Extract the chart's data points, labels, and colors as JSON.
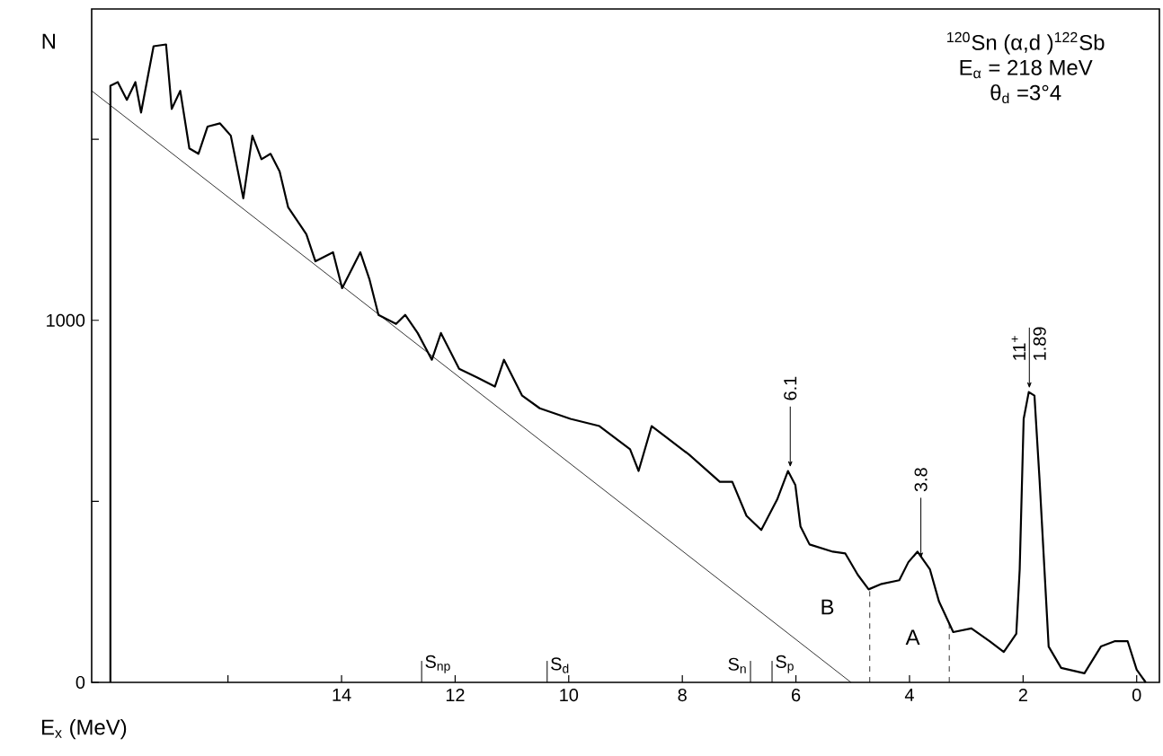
{
  "chart_data": {
    "type": "line",
    "xlabel": "E$_{x}$ (MeV)",
    "ylabel": "N",
    "xlim": [
      18.4,
      -0.4
    ],
    "ylim": [
      0,
      1860
    ],
    "xticks": [
      {
        "value": 16,
        "label": null
      },
      14,
      12,
      10,
      8,
      6,
      4,
      2,
      0
    ],
    "yticks": [
      0,
      {
        "value": 500,
        "label": null
      },
      1000,
      {
        "value": 1500,
        "label": null
      }
    ],
    "grid": false,
    "marker": "none",
    "line_style": "solid",
    "series": [
      {
        "color": "#000000",
        "x": [
          18.07,
          18.07,
          17.94,
          17.78,
          17.63,
          17.53,
          17.31,
          17.09,
          16.99,
          16.84,
          16.68,
          16.52,
          16.36,
          16.14,
          15.95,
          15.73,
          15.57,
          15.41,
          15.25,
          15.09,
          14.94,
          14.62,
          14.46,
          14.15,
          13.99,
          13.67,
          13.51,
          13.35,
          13.04,
          12.88,
          12.66,
          12.41,
          12.25,
          11.93,
          11.61,
          11.3,
          11.14,
          10.82,
          10.51,
          9.97,
          9.46,
          8.92,
          8.77,
          8.54,
          8.29,
          7.88,
          7.34,
          7.12,
          6.87,
          6.61,
          6.33,
          6.14,
          6.01,
          5.92,
          5.76,
          5.35,
          5.13,
          4.91,
          4.72,
          4.49,
          4.18,
          4.02,
          3.86,
          3.64,
          3.48,
          3.23,
          2.91,
          2.59,
          2.34,
          2.12,
          2.06,
          1.99,
          1.9,
          1.8,
          1.71,
          1.55,
          1.33,
          0.92,
          0.63,
          0.38,
          0.16,
          0,
          -0.16
        ],
        "values": [
          0,
          1648,
          1658,
          1609,
          1658,
          1574,
          1757,
          1762,
          1584,
          1634,
          1475,
          1460,
          1535,
          1544,
          1510,
          1337,
          1510,
          1445,
          1460,
          1411,
          1312,
          1238,
          1163,
          1188,
          1089,
          1188,
          1114,
          1015,
          990,
          1015,
          965,
          891,
          965,
          866,
          842,
          817,
          891,
          792,
          757,
          728,
          708,
          644,
          584,
          708,
          678,
          629,
          554,
          554,
          460,
          421,
          505,
          584,
          545,
          431,
          381,
          361,
          356,
          297,
          257,
          272,
          282,
          332,
          361,
          312,
          223,
          139,
          149,
          114,
          84,
          134,
          312,
          728,
          802,
          792,
          559,
          99,
          40,
          25,
          99,
          114,
          114,
          35,
          0
        ]
      },
      {
        "color": "#000000",
        "x": [
          18.4,
          5.03
        ],
        "values": [
          1634,
          0
        ]
      }
    ],
    "ref_lines": [
      {
        "axis": "x",
        "value": 4.7,
        "line_style": "dashed"
      },
      {
        "axis": "x",
        "value": 3.3,
        "line_style": "dashed"
      },
      {
        "axis": "x",
        "value": 12.59,
        "label": "S$_{np}$"
      },
      {
        "axis": "x",
        "value": 10.38,
        "label": "S$_{d}$"
      },
      {
        "axis": "x",
        "value": 6.8,
        "label": "S$_{n}$"
      },
      {
        "axis": "x",
        "value": 6.42,
        "label": "S$_{p}$"
      }
    ],
    "annotations": [
      "$^{120}$Sn (α,d )$^{122}$Sb",
      "E$_{α}$ = 218 MeV",
      "θ$_{d}$ =3°4",
      {
        "text": "6.1",
        "x": 6.1,
        "y": 584
      },
      {
        "text": "3.8",
        "x": 3.8,
        "y": 332
      },
      {
        "text": "11$^{+}$",
        "x": 1.89,
        "y": 802
      },
      {
        "text": "1.89",
        "x": 1.89,
        "y": 802
      },
      "B",
      "A"
    ]
  }
}
